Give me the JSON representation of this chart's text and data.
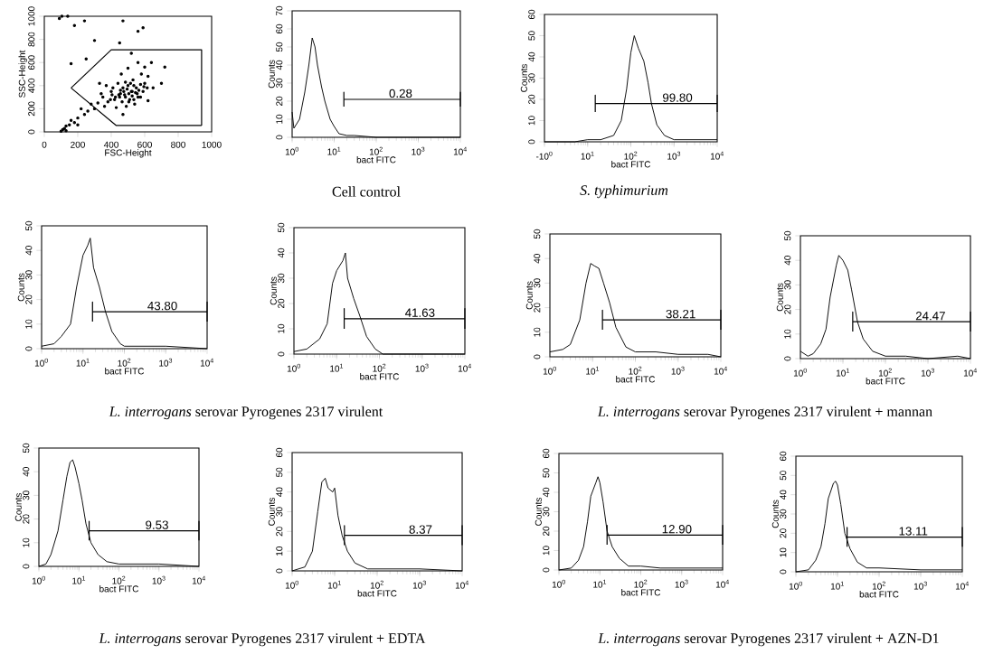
{
  "chart_data": [
    {
      "type": "scatter",
      "xlabel": "FSC-Height",
      "ylabel": "SSC-Height",
      "xlim": [
        0,
        1000
      ],
      "ylim": [
        0,
        1000
      ],
      "xticks": [
        0,
        200,
        400,
        600,
        800,
        1000
      ],
      "yticks": [
        0,
        200,
        400,
        600,
        800,
        1000
      ],
      "series": [
        {
          "type": "scatter",
          "color": "#000000",
          "x": [
            520,
            480,
            550,
            450,
            500,
            600,
            420,
            380,
            350,
            560,
            510,
            470,
            530,
            580,
            620,
            400,
            440,
            360,
            320,
            300,
            260,
            240,
            200,
            180,
            150,
            120,
            110,
            130,
            160,
            220,
            280,
            340,
            460,
            500,
            560,
            600,
            640,
            650,
            590,
            540,
            490,
            430,
            410,
            370,
            330,
            520,
            560,
            590,
            470,
            180,
            240,
            300,
            450,
            720,
            700,
            620,
            470,
            250,
            160,
            105,
            140,
            90,
            130,
            100,
            200,
            505,
            495,
            525,
            545,
            475,
            455,
            515,
            535,
            565,
            485,
            465,
            445,
            575,
            595,
            425,
            405,
            395,
            615,
            505,
            535,
            555,
            485,
            455,
            525,
            575
          ],
          "values": [
            350,
            320,
            380,
            300,
            400,
            420,
            280,
            260,
            300,
            300,
            280,
            380,
            450,
            500,
            480,
            350,
            420,
            220,
            250,
            200,
            180,
            150,
            120,
            80,
            60,
            30,
            20,
            50,
            100,
            200,
            240,
            330,
            500,
            550,
            600,
            560,
            600,
            380,
            350,
            240,
            220,
            210,
            380,
            400,
            420,
            680,
            870,
            900,
            960,
            920,
            960,
            790,
            770,
            560,
            420,
            270,
            150,
            630,
            590,
            1000,
            1000,
            980,
            10,
            5,
            60,
            330,
            370,
            310,
            340,
            350,
            330,
            420,
            280,
            360,
            300,
            260,
            320,
            410,
            390,
            300,
            320,
            280,
            380,
            260,
            400,
            330,
            430,
            360,
            350,
            300
          ]
        },
        {
          "type": "line",
          "color": "#000000",
          "x": [
            160,
            400,
            940,
            940
          ],
          "values": [
            380,
            710,
            710,
            55
          ]
        },
        {
          "type": "line",
          "color": "#000000",
          "x": [
            160,
            430,
            940
          ],
          "values": [
            380,
            55,
            55
          ]
        }
      ]
    },
    {
      "type": "line",
      "xlabel": "bact FITC",
      "ylabel": "Counts",
      "log": "x",
      "xlim": [
        1,
        10000
      ],
      "ylim": [
        0,
        70
      ],
      "xticks": [
        {
          "value": 1,
          "label": "10$^{0}$"
        },
        {
          "value": 10,
          "label": "10$^{1}$"
        },
        {
          "value": 100,
          "label": "10$^{2}$"
        },
        {
          "value": 1000,
          "label": "10$^{3}$"
        },
        {
          "value": 10000,
          "label": "10$^{4}$"
        }
      ],
      "yticks": [
        0,
        10,
        20,
        30,
        40,
        50,
        60,
        70
      ],
      "series": [
        {
          "color": "#000000",
          "x": [
            1,
            1.1,
            1.5,
            2,
            2.5,
            3,
            3.5,
            4,
            5,
            6,
            8,
            10,
            13,
            20,
            30,
            100,
            1000,
            10000
          ],
          "values": [
            14,
            5,
            10,
            25,
            40,
            55,
            50,
            40,
            28,
            20,
            10,
            6,
            2,
            1,
            1,
            0,
            0,
            0
          ]
        },
        {
          "color": "#000000",
          "x": [
            17,
            17,
            17,
            10000,
            10000,
            10000
          ],
          "values": [
            17,
            25,
            21,
            21,
            25,
            17
          ]
        }
      ],
      "annotations": [
        {
          "text": "0.28",
          "x": 380,
          "y": 21
        },
        "Cell control"
      ]
    },
    {
      "type": "line",
      "xlabel": "bact FITC",
      "ylabel": "Counts",
      "log": "x",
      "xlim": [
        1,
        10000
      ],
      "ylim": [
        0,
        60
      ],
      "xticks": [
        {
          "value": 1,
          "label": "-10$^{0}$"
        },
        {
          "value": 10,
          "label": "10$^{1}$"
        },
        {
          "value": 100,
          "label": "10$^{2}$"
        },
        {
          "value": 1000,
          "label": "10$^{3}$"
        },
        {
          "value": 10000,
          "label": "10$^{4}$"
        }
      ],
      "yticks": [
        0,
        10,
        20,
        30,
        40,
        50,
        60
      ],
      "series": [
        {
          "color": "#000000",
          "x": [
            1,
            5,
            10,
            20,
            40,
            60,
            80,
            100,
            120,
            150,
            200,
            250,
            300,
            400,
            600,
            1000,
            3000,
            10000
          ],
          "values": [
            0,
            0,
            1,
            1,
            3,
            10,
            25,
            42,
            50,
            44,
            38,
            28,
            18,
            8,
            3,
            1,
            1,
            1
          ]
        },
        {
          "color": "#000000",
          "x": [
            15,
            15,
            15,
            10000,
            10000,
            10000
          ],
          "values": [
            14,
            22,
            18,
            18,
            22,
            14
          ]
        }
      ],
      "annotations": [
        {
          "text": "99.80",
          "x": 1200,
          "y": 18
        },
        "*S. typhimurium*"
      ]
    },
    {
      "type": "line",
      "xlabel": "bact FITC",
      "ylabel": "Counts",
      "log": "x",
      "xlim": [
        1,
        10000
      ],
      "ylim": [
        0,
        50
      ],
      "xticks": [
        {
          "value": 1,
          "label": "10$^{0}$"
        },
        {
          "value": 10,
          "label": "10$^{1}$"
        },
        {
          "value": 100,
          "label": "10$^{2}$"
        },
        {
          "value": 1000,
          "label": "10$^{3}$"
        },
        {
          "value": 10000,
          "label": "10$^{4}$"
        }
      ],
      "yticks": [
        0,
        10,
        20,
        30,
        40,
        50
      ],
      "series": [
        {
          "color": "#000000",
          "x": [
            1,
            2,
            3,
            5,
            7,
            10,
            13,
            15,
            18,
            25,
            35,
            50,
            80,
            100,
            300,
            1000,
            10000
          ],
          "values": [
            1,
            2,
            5,
            10,
            25,
            38,
            42,
            45,
            33,
            25,
            15,
            7,
            2,
            1,
            1,
            1,
            0
          ]
        },
        {
          "color": "#000000",
          "x": [
            17,
            17,
            17,
            10000,
            10000,
            10000
          ],
          "values": [
            11,
            19,
            15,
            15,
            19,
            11
          ]
        }
      ],
      "annotations": [
        {
          "text": "43.80",
          "x": 830,
          "y": 15
        },
        "*L. interrogans* serovar Pyrogenes 2317 virulent"
      ]
    },
    {
      "type": "line",
      "xlabel": "bact FITC",
      "ylabel": "Counts",
      "log": "x",
      "xlim": [
        1,
        10000
      ],
      "ylim": [
        0,
        50
      ],
      "xticks": [
        {
          "value": 1,
          "label": "10$^{0}$"
        },
        {
          "value": 10,
          "label": "10$^{1}$"
        },
        {
          "value": 100,
          "label": "10$^{2}$"
        },
        {
          "value": 1000,
          "label": "10$^{3}$"
        },
        {
          "value": 10000,
          "label": "10$^{4}$"
        }
      ],
      "yticks": [
        0,
        10,
        20,
        30,
        40,
        50
      ],
      "series": [
        {
          "color": "#000000",
          "x": [
            1,
            2,
            4,
            6,
            8,
            10,
            14,
            16,
            18,
            25,
            35,
            50,
            80,
            120,
            10000
          ],
          "values": [
            1,
            2,
            6,
            12,
            28,
            33,
            37,
            40,
            30,
            22,
            15,
            7,
            2,
            0,
            0
          ]
        },
        {
          "color": "#000000",
          "x": [
            15,
            15,
            15,
            10000,
            10000,
            10000
          ],
          "values": [
            10,
            18,
            14,
            14,
            18,
            10
          ]
        }
      ],
      "annotations": [
        {
          "text": "41.63",
          "x": 890,
          "y": 14
        }
      ]
    },
    {
      "type": "line",
      "xlabel": "bact FITC",
      "ylabel": "Counts",
      "log": "x",
      "xlim": [
        1,
        10000
      ],
      "ylim": [
        0,
        50
      ],
      "xticks": [
        {
          "value": 1,
          "label": "10$^{0}$"
        },
        {
          "value": 10,
          "label": "10$^{1}$"
        },
        {
          "value": 100,
          "label": "10$^{2}$"
        },
        {
          "value": 1000,
          "label": "10$^{3}$"
        },
        {
          "value": 10000,
          "label": "10$^{4}$"
        }
      ],
      "yticks": [
        0,
        10,
        20,
        30,
        40,
        50
      ],
      "series": [
        {
          "color": "#000000",
          "x": [
            1,
            2,
            3,
            5,
            7,
            9,
            11,
            14,
            18,
            25,
            35,
            60,
            100,
            300,
            1000,
            5000,
            10000
          ],
          "values": [
            2,
            3,
            5,
            15,
            30,
            38,
            37,
            36,
            30,
            22,
            12,
            4,
            2,
            2,
            1,
            1,
            0
          ]
        },
        {
          "color": "#000000",
          "x": [
            17,
            17,
            17,
            10000,
            10000,
            10000
          ],
          "values": [
            11,
            19,
            15,
            15,
            19,
            11
          ]
        }
      ],
      "annotations": [
        {
          "text": "38.21",
          "x": 1150,
          "y": 15
        },
        "*L. interrogans* serovar Pyrogenes 2317  virulent + mannan"
      ]
    },
    {
      "type": "line",
      "xlabel": "bact FITC",
      "ylabel": "Counts",
      "log": "x",
      "xlim": [
        1,
        10000
      ],
      "ylim": [
        0,
        50
      ],
      "xticks": [
        {
          "value": 1,
          "label": "10$^{0}$"
        },
        {
          "value": 10,
          "label": "10$^{1}$"
        },
        {
          "value": 100,
          "label": "10$^{2}$"
        },
        {
          "value": 1000,
          "label": "10$^{3}$"
        },
        {
          "value": 10000,
          "label": "10$^{4}$"
        }
      ],
      "yticks": [
        0,
        10,
        20,
        30,
        40,
        50
      ],
      "series": [
        {
          "color": "#000000",
          "x": [
            1,
            1.5,
            2,
            3,
            4,
            5,
            7,
            8,
            10,
            13,
            16,
            22,
            30,
            50,
            100,
            300,
            1000,
            5000,
            10000
          ],
          "values": [
            3,
            1,
            2,
            6,
            12,
            25,
            38,
            42,
            40,
            36,
            28,
            15,
            8,
            3,
            1,
            1,
            0,
            1,
            0
          ]
        },
        {
          "color": "#000000",
          "x": [
            17,
            17,
            17,
            10000,
            10000,
            10000
          ],
          "values": [
            11,
            19,
            15,
            15,
            19,
            11
          ]
        }
      ],
      "annotations": [
        {
          "text": "24.47",
          "x": 1150,
          "y": 15
        }
      ]
    },
    {
      "type": "line",
      "xlabel": "bact FITC",
      "ylabel": "Counts",
      "log": "x",
      "xlim": [
        1,
        10000
      ],
      "ylim": [
        0,
        50
      ],
      "xticks": [
        {
          "value": 1,
          "label": "10$^{0}$"
        },
        {
          "value": 10,
          "label": "10$^{1}$"
        },
        {
          "value": 100,
          "label": "10$^{2}$"
        },
        {
          "value": 1000,
          "label": "10$^{3}$"
        },
        {
          "value": 10000,
          "label": "10$^{4}$"
        }
      ],
      "yticks": [
        0,
        10,
        20,
        30,
        40,
        50
      ],
      "series": [
        {
          "color": "#000000",
          "x": [
            1,
            1.5,
            2,
            3,
            4,
            5,
            6,
            7,
            8,
            10,
            12,
            15,
            20,
            30,
            50,
            100,
            1000,
            10000
          ],
          "values": [
            0,
            1,
            5,
            15,
            28,
            38,
            44,
            45,
            42,
            35,
            28,
            18,
            10,
            5,
            2,
            1,
            1,
            0
          ]
        },
        {
          "color": "#000000",
          "x": [
            18,
            18,
            18,
            10000,
            10000,
            10000
          ],
          "values": [
            11,
            19,
            15,
            15,
            19,
            11
          ]
        }
      ],
      "annotations": [
        {
          "text": "9.53",
          "x": 890,
          "y": 15
        },
        "*L. interrogans* serovar Pyrogenes 2317 virulent  + EDTA"
      ]
    },
    {
      "type": "line",
      "xlabel": "bact FITC",
      "ylabel": "Counts",
      "log": "x",
      "xlim": [
        1,
        10000
      ],
      "ylim": [
        0,
        60
      ],
      "xticks": [
        {
          "value": 1,
          "label": "10$^{0}$"
        },
        {
          "value": 10,
          "label": "10$^{1}$"
        },
        {
          "value": 100,
          "label": "10$^{2}$"
        },
        {
          "value": 1000,
          "label": "10$^{3}$"
        },
        {
          "value": 10000,
          "label": "10$^{4}$"
        }
      ],
      "yticks": [
        0,
        10,
        20,
        30,
        40,
        50,
        60
      ],
      "series": [
        {
          "color": "#000000",
          "x": [
            1,
            2,
            3,
            4,
            5,
            6,
            7,
            9,
            10,
            12,
            15,
            20,
            30,
            60,
            200,
            1000,
            10000
          ],
          "values": [
            0,
            2,
            10,
            30,
            45,
            47,
            42,
            40,
            42,
            28,
            18,
            10,
            4,
            1,
            1,
            1,
            0
          ]
        },
        {
          "color": "#000000",
          "x": [
            17,
            17,
            17,
            10000,
            10000,
            10000
          ],
          "values": [
            13,
            23,
            18,
            18,
            23,
            13
          ]
        }
      ],
      "annotations": [
        {
          "text": "8.37",
          "x": 1050,
          "y": 18
        }
      ]
    },
    {
      "type": "line",
      "xlabel": "bact FITC",
      "ylabel": "Counts",
      "log": "x",
      "xlim": [
        1,
        10000
      ],
      "ylim": [
        0,
        60
      ],
      "xticks": [
        {
          "value": 1,
          "label": "10$^{0}$"
        },
        {
          "value": 10,
          "label": "10$^{1}$"
        },
        {
          "value": 100,
          "label": "10$^{2}$"
        },
        {
          "value": 1000,
          "label": "10$^{3}$"
        },
        {
          "value": 10000,
          "label": "10$^{4}$"
        }
      ],
      "yticks": [
        0,
        10,
        20,
        30,
        40,
        50,
        60
      ],
      "series": [
        {
          "color": "#000000",
          "x": [
            1,
            2,
            3,
            4,
            5,
            6,
            8,
            9,
            10,
            12,
            15,
            20,
            30,
            50,
            100,
            300,
            1000,
            10000
          ],
          "values": [
            0,
            1,
            5,
            12,
            25,
            38,
            45,
            48,
            45,
            35,
            20,
            12,
            6,
            2,
            2,
            1,
            1,
            1
          ]
        },
        {
          "color": "#000000",
          "x": [
            15,
            15,
            15,
            10000,
            10000,
            10000
          ],
          "values": [
            13,
            23,
            18,
            18,
            23,
            13
          ]
        }
      ],
      "annotations": [
        {
          "text": "12.90",
          "x": 760,
          "y": 18
        },
        "*L. interrogans* serovar Pyrogenes 2317  virulent + AZN-D1"
      ]
    },
    {
      "type": "line",
      "xlabel": "bact FITC",
      "ylabel": "Counts",
      "log": "x",
      "xlim": [
        1,
        10000
      ],
      "ylim": [
        0,
        60
      ],
      "xticks": [
        {
          "value": 1,
          "label": "10$^{0}$"
        },
        {
          "value": 10,
          "label": "10$^{1}$"
        },
        {
          "value": 100,
          "label": "10$^{2}$"
        },
        {
          "value": 1000,
          "label": "10$^{3}$"
        },
        {
          "value": 10000,
          "label": "10$^{4}$"
        }
      ],
      "yticks": [
        0,
        10,
        20,
        30,
        40,
        50,
        60
      ],
      "series": [
        {
          "color": "#000000",
          "x": [
            1,
            2,
            3,
            4,
            5,
            6,
            8,
            9,
            10,
            12,
            15,
            20,
            30,
            50,
            100,
            1000,
            10000
          ],
          "values": [
            0,
            1,
            6,
            13,
            25,
            38,
            46,
            47,
            45,
            35,
            20,
            12,
            5,
            2,
            2,
            1,
            1
          ]
        },
        {
          "color": "#000000",
          "x": [
            17,
            17,
            17,
            10000,
            10000,
            10000
          ],
          "values": [
            13,
            23,
            18,
            18,
            23,
            13
          ]
        }
      ],
      "annotations": [
        {
          "text": "13.11",
          "x": 660,
          "y": 18
        }
      ]
    }
  ]
}
